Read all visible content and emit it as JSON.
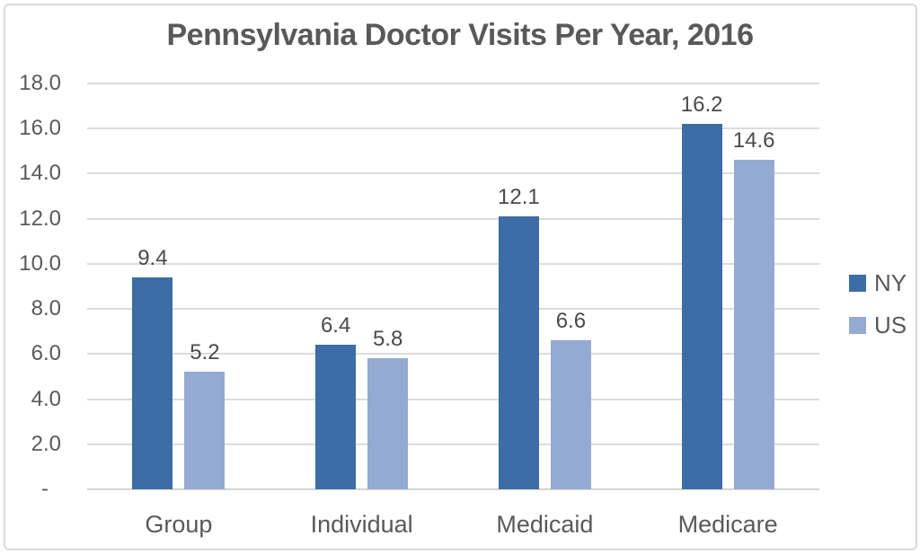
{
  "colors": {
    "ny_bar": "#3C6DA6",
    "us_bar": "#95AAD3",
    "text": "#595959",
    "gridline": "#DCDCDC",
    "border": "#D9D9D9",
    "background": "#FFFFFF"
  },
  "chart_data": {
    "type": "bar",
    "title": "Pennsylvania Doctor Visits Per Year, 2016",
    "categories": [
      "Group",
      "Individual",
      "Medicaid",
      "Medicare"
    ],
    "series": [
      {
        "name": "NY",
        "color": "#3C6DA6",
        "values": [
          9.4,
          6.4,
          12.1,
          16.2
        ],
        "labels": [
          "9.4",
          "6.4",
          "12.1",
          "16.2"
        ]
      },
      {
        "name": "US",
        "color": "#95AAD3",
        "values": [
          5.2,
          5.8,
          6.6,
          14.6
        ],
        "labels": [
          "5.2",
          "5.8",
          "6.6",
          "14.6"
        ]
      }
    ],
    "xlabel": "",
    "ylabel": "",
    "ylim": [
      0,
      18
    ],
    "y_ticks": [
      {
        "value": 18,
        "label": "18.0"
      },
      {
        "value": 16,
        "label": "16.0"
      },
      {
        "value": 14,
        "label": "14.0"
      },
      {
        "value": 12,
        "label": "12.0"
      },
      {
        "value": 10,
        "label": "10.0"
      },
      {
        "value": 8,
        "label": "8.0"
      },
      {
        "value": 6,
        "label": "6.0"
      },
      {
        "value": 4,
        "label": "4.0"
      },
      {
        "value": 2,
        "label": "2.0"
      },
      {
        "value": 0,
        "label": "-"
      }
    ],
    "grid": true,
    "legend_position": "right"
  }
}
